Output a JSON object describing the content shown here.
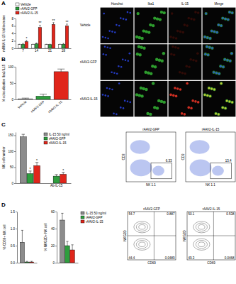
{
  "panel_labels": [
    "A",
    "B",
    "C",
    "D"
  ],
  "chart_data": [
    {
      "type": "bar",
      "y_label": "mRNA IL-15 fold increase",
      "categories": [
        "7",
        "14",
        "21",
        "28"
      ],
      "series": [
        {
          "name": "Vehicle",
          "color": "#ffffff",
          "values": [
            1,
            1,
            1,
            1
          ],
          "errors": [
            0.1,
            0.1,
            0.1,
            0.1
          ]
        },
        {
          "name": "rAAV2-GFP",
          "color": "#2e9e3e",
          "values": [
            1.1,
            1.2,
            1,
            1.1
          ],
          "errors": [
            0.2,
            0.2,
            0.1,
            0.2
          ]
        },
        {
          "name": "rAAV2-IL-15",
          "color": "#e0261b",
          "values": [
            1.8,
            5.6,
            6.4,
            6
          ],
          "errors": [
            0.3,
            0.6,
            0.5,
            0.5
          ],
          "significance": [
            "*",
            "**",
            "**",
            "**"
          ]
        }
      ],
      "ylim": [
        0,
        8
      ],
      "yticks": [
        0,
        2,
        4,
        6,
        8
      ],
      "legend": "top-left"
    },
    {
      "type": "bar",
      "y_label": "% colocalization Iba1/IL15",
      "categories": [
        "Vehicle",
        "rAAV2-GFP",
        "rAAV2-IL-15"
      ],
      "values": [
        2,
        10,
        85
      ],
      "errors": [
        2,
        6,
        8
      ],
      "colors": [
        "#ffffff",
        "#2e9e3e",
        "#e0261b"
      ],
      "ylim": [
        0,
        100
      ],
      "yticks": [
        0,
        50,
        100
      ]
    },
    {
      "type": "bar",
      "y_label": "NK cell number",
      "categories": [
        null,
        "Ab-IL-15"
      ],
      "series": [
        {
          "name": "IL-15 50 ng/ml",
          "color": "#8c8c8c",
          "values": [
            145,
            null
          ],
          "errors": [
            8,
            null
          ]
        },
        {
          "name": "rAAV2-GFP",
          "color": "#2e9e3e",
          "values": [
            30,
            22
          ],
          "errors": [
            8,
            5
          ],
          "significance": [
            "*",
            null
          ]
        },
        {
          "name": "rAAV2-IL-15",
          "color": "#e0261b",
          "values": [
            55,
            28
          ],
          "errors": [
            10,
            6
          ],
          "significance": [
            "*",
            "*"
          ]
        }
      ],
      "ylim": [
        0,
        160
      ],
      "yticks": [
        0,
        50,
        100,
        150
      ],
      "legend": "top-right"
    },
    {
      "type": "bar",
      "y_label": "% CD69+ NK cell",
      "categories": [
        null
      ],
      "series": [
        {
          "name": "IL-15 50 ng/ml",
          "color": "#8c8c8c",
          "values": [
            0.6
          ],
          "errors": [
            0.35
          ]
        },
        {
          "name": "rAAV2-GFP",
          "color": "#2e9e3e",
          "values": [
            0.02
          ],
          "errors": [
            0.02
          ]
        },
        {
          "name": "rAAV2-IL-15",
          "color": "#e0261b",
          "values": [
            0.02
          ],
          "errors": [
            0.02
          ]
        }
      ],
      "ylim": [
        0,
        1.5
      ],
      "yticks": [
        {
          "value": 0,
          "label": "0.0"
        },
        0.5,
        {
          "value": 1,
          "label": "1.0"
        },
        1.5
      ]
    },
    {
      "type": "bar",
      "y_label": "% NKG2D+ NK cell",
      "categories": [
        null
      ],
      "series": [
        {
          "name": "IL-15 50 ng/ml",
          "color": "#8c8c8c",
          "values": [
            50
          ],
          "errors": [
            8
          ]
        },
        {
          "name": "rAAV2-GFP",
          "color": "#2e9e3e",
          "values": [
            20
          ],
          "errors": [
            5
          ]
        },
        {
          "name": "rAAV2-IL-15",
          "color": "#e0261b",
          "values": [
            15
          ],
          "errors": [
            6
          ]
        }
      ],
      "ylim": [
        0,
        60
      ],
      "yticks": [
        0,
        20,
        40,
        60
      ],
      "legend": "right"
    }
  ],
  "micrographs": {
    "columns": [
      "Hoechst",
      "Iba1",
      "IL-15",
      "Merge"
    ],
    "rows": [
      "Vehicle",
      "rAAV2-GFP",
      "rAAV2-IL-15"
    ]
  },
  "flow_plots": [
    {
      "title": "rAAV2-GFP",
      "x_label": "NK 1.1",
      "y_label": "CD3",
      "gate": 6.33
    },
    {
      "title": "rAAV2-IL-15",
      "x_label": "NK 1.1",
      "y_label": "CD3",
      "gate": 13.4
    }
  ],
  "contour_plots": [
    {
      "title": "rAAV2-GFP",
      "x_label": "CD69",
      "y_label": "NKG2D",
      "quadrants": [
        54.7,
        0.887,
        44.4,
        0.0489
      ]
    },
    {
      "title": "rAAV2-IL-15",
      "x_label": "CD69",
      "y_label": "NKG2D",
      "quadrants": [
        50.1,
        0.538,
        49.3,
        0.0468
      ]
    }
  ]
}
